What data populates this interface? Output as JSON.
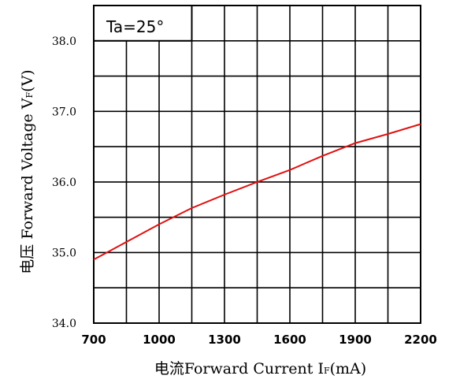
{
  "chart_data": {
    "type": "line",
    "annotation": "Ta=25°",
    "xlabel": {
      "prefix": "电流Forward Current I",
      "sub": "F",
      "suffix": "(mA)"
    },
    "ylabel": {
      "prefix": "电压 Forward Voltage V",
      "sub": "F",
      "suffix": "(V)"
    },
    "xlim": [
      700,
      2200
    ],
    "ylim": [
      34.0,
      38.5
    ],
    "x_ticks": [
      700,
      1000,
      1300,
      1600,
      1900,
      2200
    ],
    "x_tick_labels": [
      "700",
      "1000",
      "1300",
      "1600",
      "1900",
      "2200"
    ],
    "y_ticks": [
      34.0,
      35.0,
      36.0,
      37.0,
      38.0
    ],
    "y_tick_labels": [
      "34.0",
      "35.0",
      "36.0",
      "37.0",
      "38.0"
    ],
    "x_grid_step": 150,
    "y_grid_step": 0.5,
    "grid": true,
    "line_color": "#e01010",
    "series": [
      {
        "x": [
          700,
          850,
          1000,
          1150,
          1300,
          1450,
          1600,
          1750,
          1900,
          2050,
          2200
        ],
        "y": [
          34.9,
          35.15,
          35.4,
          35.63,
          35.82,
          36.0,
          36.17,
          36.37,
          36.55,
          36.68,
          36.82
        ]
      }
    ]
  }
}
